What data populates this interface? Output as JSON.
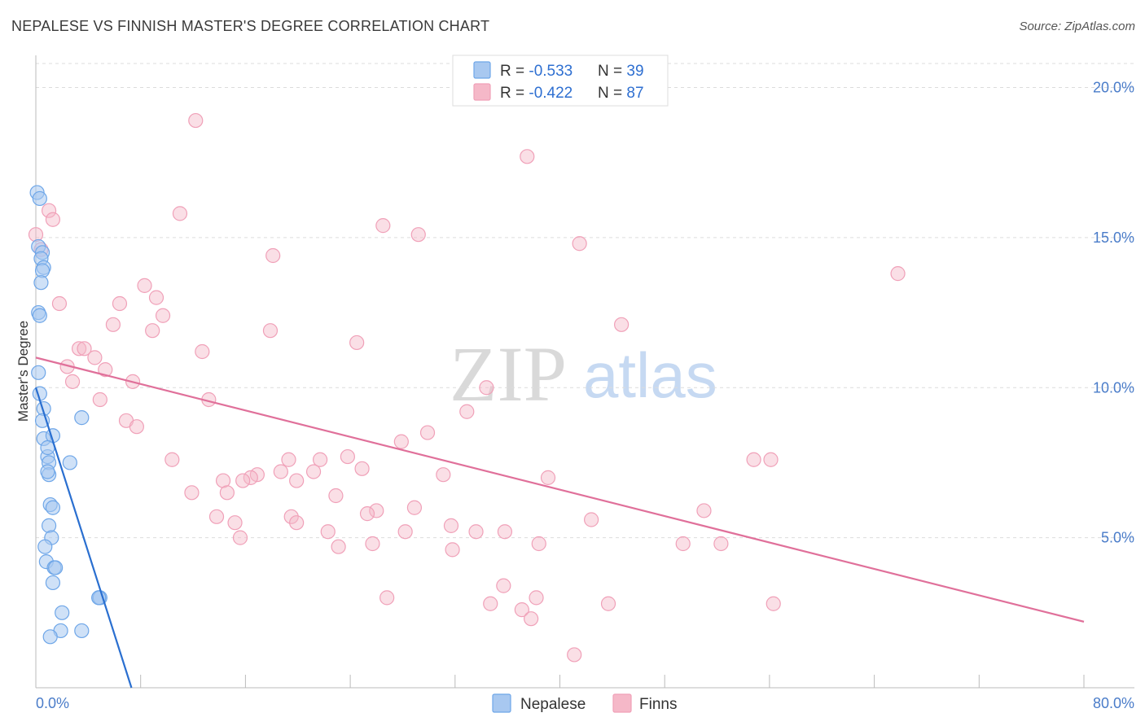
{
  "header": {
    "title": "NEPALESE VS FINNISH MASTER'S DEGREE CORRELATION CHART",
    "source": "Source: ZipAtlas.com"
  },
  "watermark": {
    "zip": "ZIP",
    "atlas": "atlas"
  },
  "legend": {
    "rows": [
      {
        "r_label": "R = ",
        "r_value": "-0.533",
        "n_label": "N = ",
        "n_value": "39",
        "color": "#a8c8f0"
      },
      {
        "r_label": "R = ",
        "r_value": "-0.422",
        "n_label": "N = ",
        "n_value": "87",
        "color": "#f5b8c8"
      }
    ]
  },
  "bottom_legend": {
    "items": [
      "Nepalese",
      "Finns"
    ]
  },
  "chart_data": {
    "type": "scatter",
    "title": "NEPALESE VS FINNISH MASTER'S DEGREE CORRELATION CHART",
    "xlabel": "",
    "ylabel": "Master's Degree",
    "xlim": [
      0,
      80
    ],
    "ylim": [
      0,
      20.8
    ],
    "x_tick_labels": [
      "0.0%",
      "80.0%"
    ],
    "y_ticks": [
      5,
      10,
      15,
      20
    ],
    "y_tick_labels": [
      "5.0%",
      "10.0%",
      "15.0%",
      "20.0%"
    ],
    "grid": true,
    "series": [
      {
        "name": "Nepalese",
        "color": "#6ea6e8",
        "line_color": "#2a6fd0",
        "trend": {
          "x": [
            0,
            7.3
          ],
          "y": [
            10.0,
            0.0
          ]
        },
        "points": [
          [
            0.1,
            16.5
          ],
          [
            0.3,
            16.3
          ],
          [
            0.2,
            14.7
          ],
          [
            0.5,
            14.5
          ],
          [
            0.4,
            14.3
          ],
          [
            0.6,
            14.0
          ],
          [
            0.5,
            13.9
          ],
          [
            0.4,
            13.5
          ],
          [
            0.2,
            12.5
          ],
          [
            0.3,
            12.4
          ],
          [
            0.2,
            10.5
          ],
          [
            0.3,
            9.8
          ],
          [
            0.6,
            9.3
          ],
          [
            0.5,
            8.9
          ],
          [
            0.6,
            8.3
          ],
          [
            1.3,
            8.4
          ],
          [
            0.9,
            7.7
          ],
          [
            1.0,
            7.5
          ],
          [
            1.0,
            7.1
          ],
          [
            0.9,
            7.2
          ],
          [
            1.1,
            6.1
          ],
          [
            1.3,
            6.0
          ],
          [
            1.0,
            5.4
          ],
          [
            1.2,
            5.0
          ],
          [
            0.7,
            4.7
          ],
          [
            0.8,
            4.2
          ],
          [
            1.4,
            4.0
          ],
          [
            1.5,
            4.0
          ],
          [
            1.3,
            3.5
          ],
          [
            2.0,
            2.5
          ],
          [
            1.9,
            1.9
          ],
          [
            1.1,
            1.7
          ],
          [
            4.8,
            3.0
          ],
          [
            4.9,
            3.0
          ],
          [
            4.8,
            3.0
          ],
          [
            3.5,
            1.9
          ],
          [
            3.5,
            9.0
          ],
          [
            2.6,
            7.5
          ],
          [
            0.9,
            8.0
          ]
        ]
      },
      {
        "name": "Finns",
        "color": "#f5b8c8",
        "line_color": "#e0709a",
        "trend": {
          "x": [
            0,
            80
          ],
          "y": [
            11.0,
            2.2
          ]
        },
        "points": [
          [
            12.2,
            18.9
          ],
          [
            37.5,
            17.7
          ],
          [
            1.0,
            15.9
          ],
          [
            1.3,
            15.6
          ],
          [
            11.0,
            15.8
          ],
          [
            26.5,
            15.4
          ],
          [
            29.2,
            15.1
          ],
          [
            41.5,
            14.8
          ],
          [
            18.1,
            14.4
          ],
          [
            65.8,
            13.8
          ],
          [
            8.3,
            13.4
          ],
          [
            9.2,
            13.0
          ],
          [
            6.4,
            12.8
          ],
          [
            1.8,
            12.8
          ],
          [
            9.7,
            12.4
          ],
          [
            5.9,
            12.1
          ],
          [
            44.7,
            12.1
          ],
          [
            17.9,
            11.9
          ],
          [
            8.9,
            11.9
          ],
          [
            24.5,
            11.5
          ],
          [
            3.3,
            11.3
          ],
          [
            3.7,
            11.3
          ],
          [
            12.7,
            11.2
          ],
          [
            4.5,
            11.0
          ],
          [
            2.4,
            10.7
          ],
          [
            5.3,
            10.6
          ],
          [
            7.4,
            10.2
          ],
          [
            2.8,
            10.2
          ],
          [
            34.4,
            10.0
          ],
          [
            13.2,
            9.6
          ],
          [
            4.9,
            9.6
          ],
          [
            32.9,
            9.2
          ],
          [
            6.9,
            8.9
          ],
          [
            7.7,
            8.7
          ],
          [
            29.9,
            8.5
          ],
          [
            27.9,
            8.2
          ],
          [
            10.4,
            7.6
          ],
          [
            19.3,
            7.6
          ],
          [
            21.7,
            7.6
          ],
          [
            23.8,
            7.7
          ],
          [
            54.8,
            7.6
          ],
          [
            56.1,
            7.6
          ],
          [
            24.9,
            7.3
          ],
          [
            18.7,
            7.2
          ],
          [
            21.2,
            7.2
          ],
          [
            31.1,
            7.1
          ],
          [
            39.1,
            7.0
          ],
          [
            16.9,
            7.1
          ],
          [
            16.4,
            7.0
          ],
          [
            14.3,
            6.9
          ],
          [
            15.8,
            6.9
          ],
          [
            19.9,
            6.9
          ],
          [
            11.9,
            6.5
          ],
          [
            14.6,
            6.5
          ],
          [
            22.9,
            6.4
          ],
          [
            28.9,
            6.0
          ],
          [
            26.0,
            5.9
          ],
          [
            51.0,
            5.9
          ],
          [
            25.3,
            5.8
          ],
          [
            19.5,
            5.7
          ],
          [
            13.8,
            5.7
          ],
          [
            42.4,
            5.6
          ],
          [
            19.9,
            5.5
          ],
          [
            15.2,
            5.5
          ],
          [
            31.7,
            5.4
          ],
          [
            28.2,
            5.2
          ],
          [
            35.8,
            5.2
          ],
          [
            33.6,
            5.2
          ],
          [
            22.3,
            5.2
          ],
          [
            15.6,
            5.0
          ],
          [
            25.7,
            4.8
          ],
          [
            38.4,
            4.8
          ],
          [
            49.4,
            4.8
          ],
          [
            52.3,
            4.8
          ],
          [
            23.1,
            4.7
          ],
          [
            31.8,
            4.6
          ],
          [
            35.7,
            3.4
          ],
          [
            26.8,
            3.0
          ],
          [
            38.2,
            3.0
          ],
          [
            34.7,
            2.8
          ],
          [
            43.7,
            2.8
          ],
          [
            56.3,
            2.8
          ],
          [
            37.1,
            2.6
          ],
          [
            37.8,
            2.3
          ],
          [
            41.1,
            1.1
          ],
          [
            0.0,
            15.1
          ],
          [
            0.4,
            14.6
          ]
        ]
      }
    ]
  }
}
